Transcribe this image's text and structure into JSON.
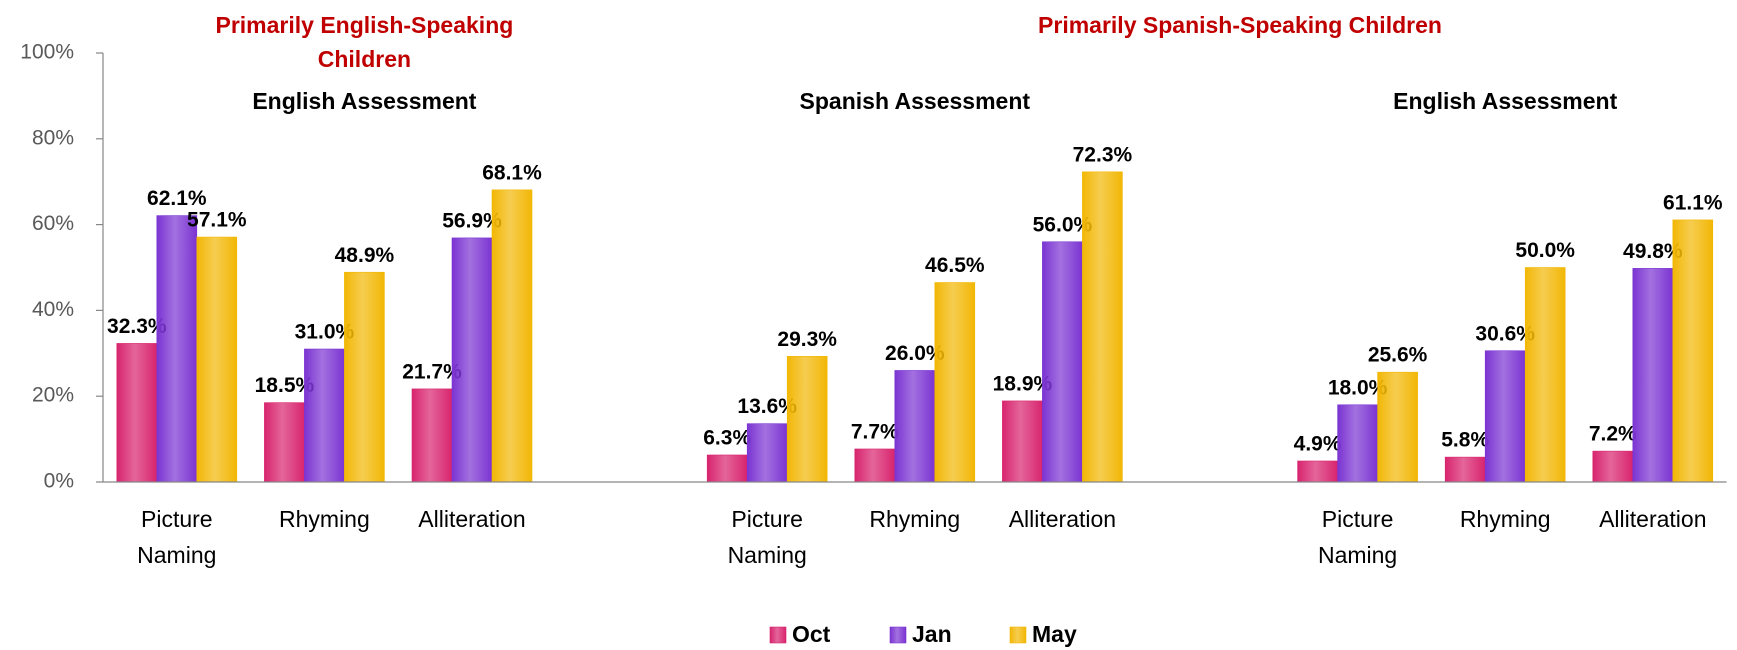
{
  "chart_data": {
    "type": "bar",
    "ylim": [
      0,
      100
    ],
    "yticks": [
      {
        "value": 0,
        "label": "0%"
      },
      {
        "value": 20,
        "label": "20%"
      },
      {
        "value": 40,
        "label": "40%"
      },
      {
        "value": 60,
        "label": "60%"
      },
      {
        "value": 80,
        "label": "80%"
      },
      {
        "value": 100,
        "label": "100%"
      }
    ],
    "legend": "bottom",
    "series": [
      {
        "name": "Oct",
        "color": "#d8246e"
      },
      {
        "name": "Jan",
        "color": "#7b34d2"
      },
      {
        "name": "May",
        "color": "#f2b705"
      }
    ],
    "groups": [
      {
        "title": "Primarily English-Speaking Children",
        "panels": [
          {
            "subtitle": "English Assessment",
            "categories": [
              "Picture Naming",
              "Rhyming",
              "Alliteration"
            ],
            "values": [
              [
                32.3,
                18.5,
                21.7
              ],
              [
                62.1,
                31.0,
                56.9
              ],
              [
                57.1,
                48.9,
                68.1
              ]
            ],
            "value_labels": [
              [
                "32.3%",
                "18.5%",
                "21.7%"
              ],
              [
                "62.1%",
                "31.0%",
                "56.9%"
              ],
              [
                "57.1%",
                "48.9%",
                "68.1%"
              ]
            ]
          }
        ]
      },
      {
        "title": "Primarily Spanish-Speaking Children",
        "panels": [
          {
            "subtitle": "Spanish Assessment",
            "categories": [
              "Picture Naming",
              "Rhyming",
              "Alliteration"
            ],
            "values": [
              [
                6.3,
                7.7,
                18.9
              ],
              [
                13.6,
                26.0,
                56.0
              ],
              [
                29.3,
                46.5,
                72.3
              ]
            ],
            "value_labels": [
              [
                "6.3%",
                "7.7%",
                "18.9%"
              ],
              [
                "13.6%",
                "26.0%",
                "56.0%"
              ],
              [
                "29.3%",
                "46.5%",
                "72.3%"
              ]
            ]
          },
          {
            "subtitle": "English Assessment",
            "categories": [
              "Picture Naming",
              "Rhyming",
              "Alliteration"
            ],
            "values": [
              [
                4.9,
                5.8,
                7.2
              ],
              [
                18.0,
                30.6,
                49.8
              ],
              [
                25.6,
                50.0,
                61.1
              ]
            ],
            "value_labels": [
              [
                "4.9%",
                "5.8%",
                "7.2%"
              ],
              [
                "18.0%",
                "30.6%",
                "49.8%"
              ],
              [
                "25.6%",
                "50.0%",
                "61.1%"
              ]
            ]
          }
        ]
      }
    ]
  }
}
